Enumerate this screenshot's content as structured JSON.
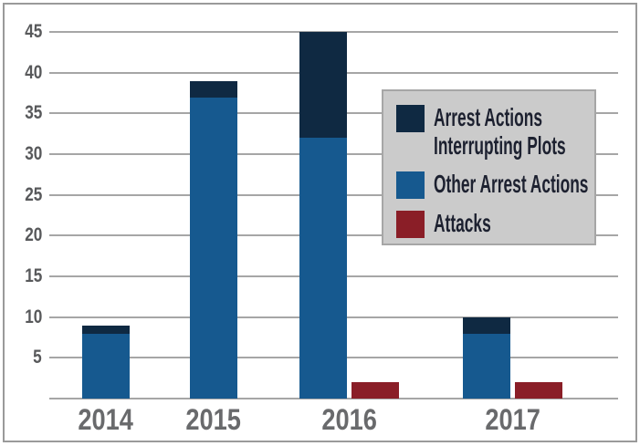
{
  "chart_data": {
    "type": "bar",
    "subtype": "stacked-with-separate-attacks-bar",
    "title": "",
    "xlabel": "",
    "ylabel": "",
    "categories": [
      "2014",
      "2015",
      "2016",
      "2017"
    ],
    "series": [
      {
        "name": "Arrest Actions Interrupting Plots",
        "role": "stack-top",
        "values": [
          1,
          2,
          13,
          2
        ]
      },
      {
        "name": "Other Arrest Actions",
        "role": "stack-base",
        "values": [
          8,
          37,
          32,
          8
        ]
      },
      {
        "name": "Attacks",
        "role": "separate-bar",
        "values": [
          0,
          0,
          2,
          2
        ]
      }
    ],
    "stack_totals": [
      9,
      39,
      45,
      10
    ],
    "ylim": [
      0,
      45
    ],
    "y_tick_step": 5,
    "y_tick_labels": [
      "5",
      "10",
      "15",
      "20",
      "25",
      "30",
      "35",
      "40",
      "45"
    ],
    "grid": "horizontal",
    "legend_position": "upper-right-overlay"
  },
  "legend": {
    "entries": [
      {
        "label": "Arrest Actions\nInterrupting Plots",
        "series": "Arrest Actions Interrupting Plots",
        "color": "#0f2942"
      },
      {
        "label": "Other Arrest Actions",
        "series": "Other Arrest Actions",
        "color": "#16598f"
      },
      {
        "label": "Attacks",
        "series": "Attacks",
        "color": "#8a1e27"
      }
    ]
  },
  "colors": {
    "arrest_interrupting": "#0f2942",
    "other_arrest": "#16598f",
    "attacks": "#8a1e27",
    "legend_background": "#cbcbcb",
    "legend_border": "#a6a6a6",
    "gridline": "#a6a6a6",
    "tick_text": "#58595b",
    "year_text": "#696a6c",
    "outer_border": "#9a9a9a",
    "background": "#ffffff"
  }
}
